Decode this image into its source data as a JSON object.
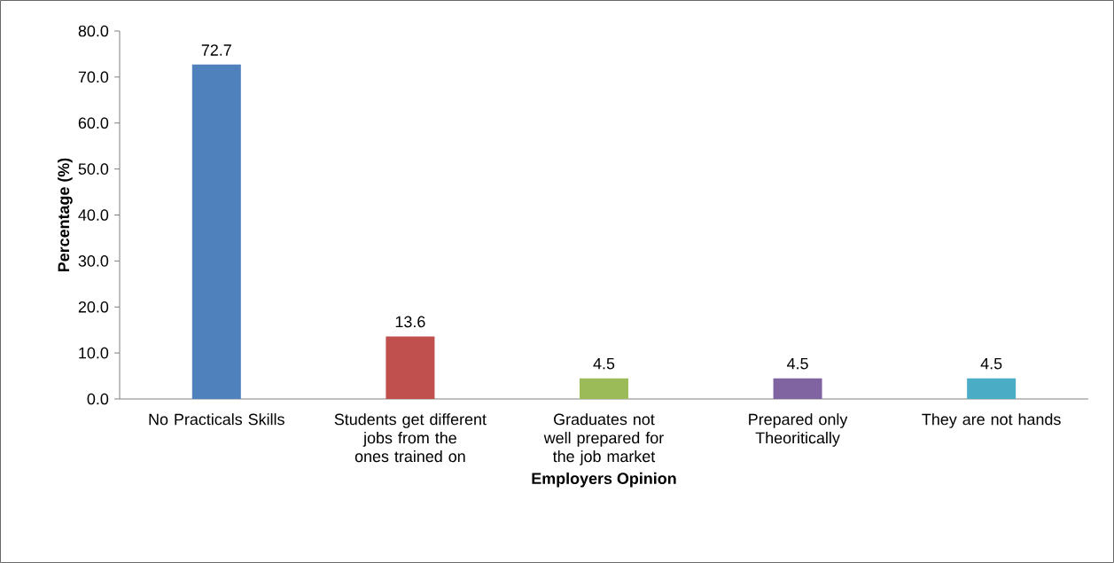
{
  "chart_data": {
    "type": "bar",
    "xlabel": "Employers Opinion",
    "ylabel": "Percentage (%)",
    "categories": [
      "No Practicals Skills",
      "Students get different jobs from the ones trained on",
      "Graduates not well prepared for the job market",
      "Prepared only Theoritically",
      "They are not hands"
    ],
    "values": [
      72.7,
      13.6,
      4.5,
      4.5,
      4.5
    ],
    "colors": [
      "#4f81bd",
      "#c0504d",
      "#9bbb59",
      "#8064a2",
      "#4bacc6"
    ],
    "ylim": [
      0,
      80
    ],
    "yticks": [
      {
        "value": 0,
        "label": "0.0"
      },
      {
        "value": 10,
        "label": "10.0"
      },
      {
        "value": 20,
        "label": "20.0"
      },
      {
        "value": 30,
        "label": "30.0"
      },
      {
        "value": 40,
        "label": "40.0"
      },
      {
        "value": 50,
        "label": "50.0"
      },
      {
        "value": 60,
        "label": "60.0"
      },
      {
        "value": 70,
        "label": "70.0"
      },
      {
        "value": 80,
        "label": "80.0"
      }
    ],
    "data_labels": true
  }
}
